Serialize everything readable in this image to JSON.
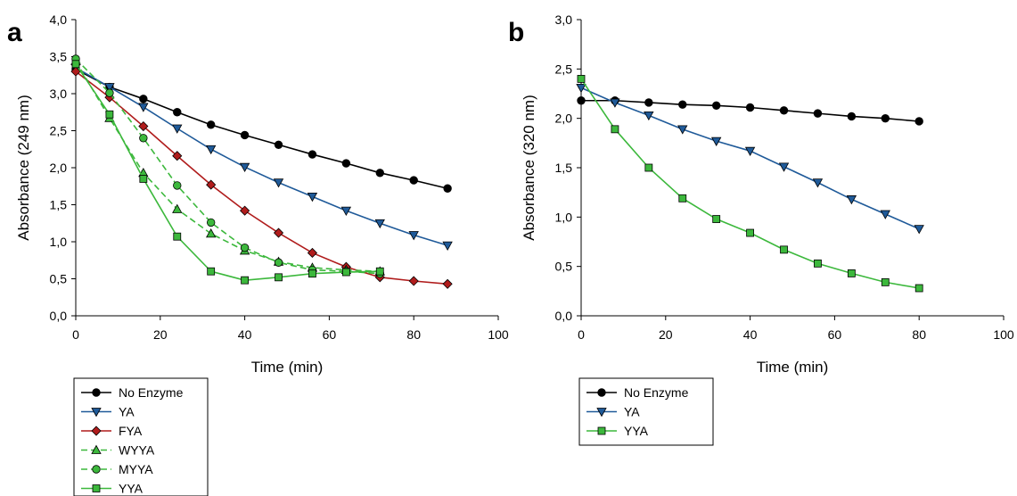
{
  "chart_data": [
    {
      "panel_label": "a",
      "type": "line",
      "xlabel": "Time (min)",
      "ylabel": "Absorbance (249 nm)",
      "xlim": [
        0,
        100
      ],
      "ylim": [
        0,
        4
      ],
      "xticks": [
        0,
        20,
        40,
        60,
        80,
        100
      ],
      "xtick_labels": [
        "0",
        "20",
        "40",
        "60",
        "80",
        "100"
      ],
      "yticks": [
        0,
        0.5,
        1,
        1.5,
        2,
        2.5,
        3,
        3.5,
        4
      ],
      "ytick_labels": [
        "0,0",
        "0,5",
        "1,0",
        "1,5",
        "2,0",
        "2,5",
        "3,0",
        "3,5",
        "4,0"
      ],
      "grid": false,
      "legend_position": "below plot",
      "series": [
        {
          "name": "No Enzyme",
          "color": "#000000",
          "marker": "circle",
          "dashed": false,
          "x": [
            0,
            8,
            16,
            24,
            32,
            40,
            48,
            56,
            64,
            72,
            80,
            88
          ],
          "y": [
            3.33,
            3.09,
            2.93,
            2.75,
            2.58,
            2.44,
            2.31,
            2.18,
            2.06,
            1.93,
            1.83,
            1.72
          ]
        },
        {
          "name": "YA",
          "color": "#1f5a99",
          "marker": "triangle-down",
          "dashed": false,
          "x": [
            0,
            8,
            16,
            24,
            32,
            40,
            48,
            56,
            64,
            72,
            80,
            88
          ],
          "y": [
            3.35,
            3.09,
            2.82,
            2.53,
            2.25,
            2.01,
            1.8,
            1.61,
            1.42,
            1.25,
            1.09,
            0.95
          ]
        },
        {
          "name": "FYA",
          "color": "#b01c1c",
          "marker": "diamond",
          "dashed": false,
          "x": [
            0,
            8,
            16,
            24,
            32,
            40,
            48,
            56,
            64,
            72,
            80,
            88
          ],
          "y": [
            3.3,
            2.95,
            2.56,
            2.16,
            1.77,
            1.42,
            1.12,
            0.85,
            0.66,
            0.52,
            0.47,
            0.43
          ]
        },
        {
          "name": "WYYA",
          "color": "#3cb83c",
          "marker": "triangle-up",
          "dashed": true,
          "x": [
            0,
            8,
            16,
            24,
            32,
            40,
            48,
            56,
            64,
            72
          ],
          "y": [
            3.44,
            2.67,
            1.93,
            1.44,
            1.11,
            0.88,
            0.73,
            0.65,
            0.62,
            0.6
          ]
        },
        {
          "name": "MYYA",
          "color": "#3cb83c",
          "marker": "circle",
          "dashed": true,
          "x": [
            0,
            8,
            16,
            24,
            32,
            40,
            48,
            56,
            64,
            72
          ],
          "y": [
            3.47,
            3.01,
            2.4,
            1.76,
            1.26,
            0.92,
            0.72,
            0.62,
            0.6,
            0.57
          ]
        },
        {
          "name": "YYA",
          "color": "#3cb83c",
          "marker": "square",
          "dashed": false,
          "x": [
            0,
            8,
            16,
            24,
            32,
            40,
            48,
            56,
            64,
            72
          ],
          "y": [
            3.4,
            2.72,
            1.85,
            1.07,
            0.6,
            0.48,
            0.52,
            0.57,
            0.59,
            0.6
          ]
        }
      ]
    },
    {
      "panel_label": "b",
      "type": "line",
      "xlabel": "Time (min)",
      "ylabel": "Absorbance (320 nm)",
      "xlim": [
        0,
        100
      ],
      "ylim": [
        0,
        3
      ],
      "xticks": [
        0,
        20,
        40,
        60,
        80,
        100
      ],
      "xtick_labels": [
        "0",
        "20",
        "40",
        "60",
        "80",
        "100"
      ],
      "yticks": [
        0,
        0.5,
        1,
        1.5,
        2,
        2.5,
        3
      ],
      "ytick_labels": [
        "0,0",
        "0,5",
        "1,0",
        "1,5",
        "2,0",
        "2,5",
        "3,0"
      ],
      "grid": false,
      "legend_position": "below plot",
      "series": [
        {
          "name": "No Enzyme",
          "color": "#000000",
          "marker": "circle",
          "dashed": false,
          "x": [
            0,
            8,
            16,
            24,
            32,
            40,
            48,
            56,
            64,
            72,
            80
          ],
          "y": [
            2.18,
            2.18,
            2.16,
            2.14,
            2.13,
            2.11,
            2.08,
            2.05,
            2.02,
            2.0,
            1.97
          ]
        },
        {
          "name": "YA",
          "color": "#1f5a99",
          "marker": "triangle-down",
          "dashed": false,
          "x": [
            0,
            8,
            16,
            24,
            32,
            40,
            48,
            56,
            64,
            72,
            80
          ],
          "y": [
            2.31,
            2.16,
            2.03,
            1.89,
            1.77,
            1.67,
            1.51,
            1.35,
            1.18,
            1.03,
            0.88
          ]
        },
        {
          "name": "YYA",
          "color": "#3cb83c",
          "marker": "square",
          "dashed": false,
          "x": [
            0,
            8,
            16,
            24,
            32,
            40,
            48,
            56,
            64,
            72,
            80
          ],
          "y": [
            2.4,
            1.89,
            1.5,
            1.19,
            0.98,
            0.84,
            0.67,
            0.53,
            0.43,
            0.34,
            0.28
          ]
        }
      ]
    }
  ]
}
